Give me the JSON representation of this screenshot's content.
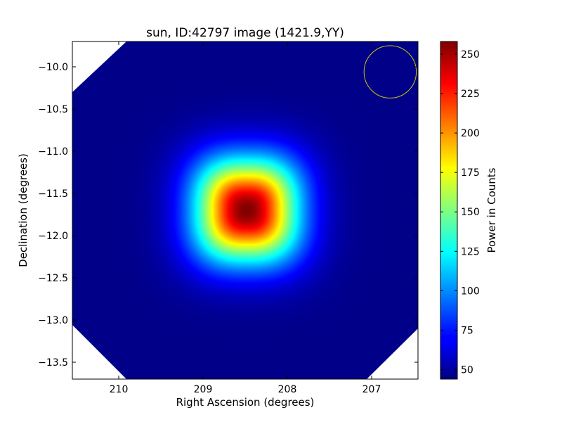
{
  "chart_data": {
    "type": "heatmap",
    "title": "sun, ID:42797 image (1421.9,YY)",
    "xlabel": "Right Ascension (degrees)",
    "ylabel": "Declination (degrees)",
    "xlim": [
      210.55,
      206.45
    ],
    "ylim": [
      -13.7,
      -9.7
    ],
    "x_ticks": [
      210,
      209,
      208,
      207
    ],
    "x_tick_labels": [
      "210",
      "209",
      "208",
      "207"
    ],
    "y_ticks": [
      -10.0,
      -10.5,
      -11.0,
      -11.5,
      -12.0,
      -12.5,
      -13.0,
      -13.5
    ],
    "y_tick_labels": [
      "−10.0",
      "−10.5",
      "−11.0",
      "−11.5",
      "−12.0",
      "−12.5",
      "−13.0",
      "−13.5"
    ],
    "colormap": "jet",
    "colorbar": {
      "label": "Power in Counts",
      "range": [
        44,
        258
      ],
      "ticks": [
        50,
        75,
        100,
        125,
        150,
        175,
        200,
        225,
        250
      ],
      "tick_labels": [
        "50",
        "75",
        "100",
        "125",
        "150",
        "175",
        "200",
        "225",
        "250"
      ]
    },
    "peak": {
      "ra": 208.48,
      "dec": -11.7,
      "value": 258
    },
    "background_value": 46,
    "footprint": "octagon with clipped corners; areas outside footprint blank (white)",
    "beam_marker": {
      "ra": 206.78,
      "dec": -10.06,
      "radius_deg": 0.31,
      "color": "#c8c800"
    }
  }
}
